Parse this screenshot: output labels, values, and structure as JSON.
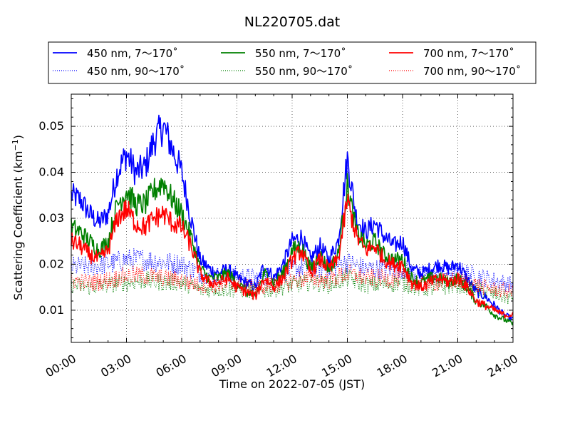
{
  "chart_data": {
    "type": "line",
    "title": "NL220705.dat",
    "xlabel": "Time on 2022-07-05 (JST)",
    "ylabel_main": "Scattering Coefficient (km",
    "ylabel_sup": "−1",
    "ylabel_end": ")",
    "xlim": [
      0,
      24
    ],
    "ylim": [
      0.003,
      0.057
    ],
    "xticks": [
      {
        "value": 0,
        "label": "00:00"
      },
      {
        "value": 3,
        "label": "03:00"
      },
      {
        "value": 6,
        "label": "06:00"
      },
      {
        "value": 9,
        "label": "09:00"
      },
      {
        "value": 12,
        "label": "12:00"
      },
      {
        "value": 15,
        "label": "15:00"
      },
      {
        "value": 18,
        "label": "18:00"
      },
      {
        "value": 21,
        "label": "21:00"
      },
      {
        "value": 24,
        "label": "24:00"
      }
    ],
    "yticks": [
      {
        "value": 0.01,
        "label": "0.01"
      },
      {
        "value": 0.02,
        "label": "0.02"
      },
      {
        "value": 0.03,
        "label": "0.03"
      },
      {
        "value": 0.04,
        "label": "0.04"
      },
      {
        "value": 0.05,
        "label": "0.05"
      }
    ],
    "grid": true,
    "legend_position": "top",
    "series": [
      {
        "name": "450 nm, 7～170˚",
        "color": "#0000ff",
        "style": "solid",
        "x": [
          0,
          0.5,
          1,
          1.5,
          2,
          2.5,
          3,
          3.5,
          4,
          4.5,
          5,
          5.5,
          6,
          6.5,
          7,
          7.5,
          8,
          8.5,
          9,
          9.5,
          10,
          10.5,
          11,
          11.5,
          12,
          12.5,
          13,
          13.5,
          14,
          14.5,
          15,
          15.5,
          16,
          16.5,
          17,
          17.5,
          18,
          18.5,
          19,
          19.5,
          20,
          20.5,
          21,
          21.5,
          22,
          22.5,
          23,
          23.5,
          24
        ],
        "y": [
          0.035,
          0.034,
          0.031,
          0.029,
          0.031,
          0.04,
          0.044,
          0.04,
          0.041,
          0.047,
          0.05,
          0.045,
          0.04,
          0.03,
          0.021,
          0.019,
          0.018,
          0.019,
          0.017,
          0.016,
          0.015,
          0.02,
          0.017,
          0.02,
          0.025,
          0.026,
          0.021,
          0.024,
          0.021,
          0.025,
          0.043,
          0.03,
          0.027,
          0.029,
          0.026,
          0.024,
          0.025,
          0.019,
          0.018,
          0.019,
          0.02,
          0.019,
          0.02,
          0.017,
          0.014,
          0.013,
          0.011,
          0.009,
          0.008
        ]
      },
      {
        "name": "450 nm, 90～170˚",
        "color": "#0000ff",
        "style": "dotted",
        "x": [
          0,
          1,
          2,
          3,
          4,
          5,
          6,
          7,
          8,
          9,
          10,
          11,
          12,
          13,
          14,
          15,
          16,
          17,
          18,
          19,
          20,
          21,
          22,
          23,
          24
        ],
        "y": [
          0.0195,
          0.0195,
          0.02,
          0.021,
          0.021,
          0.0205,
          0.02,
          0.018,
          0.0175,
          0.0175,
          0.017,
          0.0175,
          0.019,
          0.0195,
          0.019,
          0.0205,
          0.019,
          0.019,
          0.019,
          0.0175,
          0.018,
          0.0185,
          0.0175,
          0.0165,
          0.0155
        ]
      },
      {
        "name": "550 nm, 7～170˚",
        "color": "#008000",
        "style": "solid",
        "x": [
          0,
          0.5,
          1,
          1.5,
          2,
          2.5,
          3,
          3.5,
          4,
          4.5,
          5,
          5.5,
          6,
          6.5,
          7,
          7.5,
          8,
          8.5,
          9,
          9.5,
          10,
          10.5,
          11,
          11.5,
          12,
          12.5,
          13,
          13.5,
          14,
          14.5,
          15,
          15.5,
          16,
          16.5,
          17,
          17.5,
          18,
          18.5,
          19,
          19.5,
          20,
          20.5,
          21,
          21.5,
          22,
          22.5,
          23,
          23.5,
          24
        ],
        "y": [
          0.028,
          0.027,
          0.025,
          0.023,
          0.025,
          0.033,
          0.036,
          0.033,
          0.033,
          0.036,
          0.038,
          0.034,
          0.031,
          0.026,
          0.019,
          0.017,
          0.017,
          0.018,
          0.016,
          0.014,
          0.013,
          0.018,
          0.016,
          0.018,
          0.023,
          0.024,
          0.019,
          0.022,
          0.019,
          0.022,
          0.037,
          0.027,
          0.024,
          0.025,
          0.022,
          0.021,
          0.021,
          0.017,
          0.016,
          0.017,
          0.017,
          0.016,
          0.017,
          0.015,
          0.012,
          0.011,
          0.009,
          0.008,
          0.007
        ]
      },
      {
        "name": "550 nm, 90～170˚",
        "color": "#008000",
        "style": "dotted",
        "x": [
          0,
          1,
          2,
          3,
          4,
          5,
          6,
          7,
          8,
          9,
          10,
          11,
          12,
          13,
          14,
          15,
          16,
          17,
          18,
          19,
          20,
          21,
          22,
          23,
          24
        ],
        "y": [
          0.0155,
          0.015,
          0.0155,
          0.016,
          0.0165,
          0.016,
          0.016,
          0.0145,
          0.0145,
          0.0145,
          0.014,
          0.0145,
          0.0155,
          0.016,
          0.0155,
          0.017,
          0.0155,
          0.0155,
          0.016,
          0.0145,
          0.015,
          0.0155,
          0.0145,
          0.0135,
          0.0125
        ]
      },
      {
        "name": "700 nm, 7～170˚",
        "color": "#ff0000",
        "style": "solid",
        "x": [
          0,
          0.5,
          1,
          1.5,
          2,
          2.5,
          3,
          3.5,
          4,
          4.5,
          5,
          5.5,
          6,
          6.5,
          7,
          7.5,
          8,
          8.5,
          9,
          9.5,
          10,
          10.5,
          11,
          11.5,
          12,
          12.5,
          13,
          13.5,
          14,
          14.5,
          15,
          15.5,
          16,
          16.5,
          17,
          17.5,
          18,
          18.5,
          19,
          19.5,
          20,
          20.5,
          21,
          21.5,
          22,
          22.5,
          23,
          23.5,
          24
        ],
        "y": [
          0.025,
          0.024,
          0.022,
          0.021,
          0.023,
          0.03,
          0.032,
          0.029,
          0.028,
          0.03,
          0.031,
          0.029,
          0.028,
          0.024,
          0.018,
          0.016,
          0.016,
          0.017,
          0.015,
          0.014,
          0.013,
          0.017,
          0.015,
          0.017,
          0.021,
          0.023,
          0.018,
          0.021,
          0.019,
          0.021,
          0.034,
          0.026,
          0.023,
          0.024,
          0.021,
          0.02,
          0.02,
          0.016,
          0.015,
          0.016,
          0.017,
          0.016,
          0.017,
          0.015,
          0.012,
          0.011,
          0.01,
          0.009,
          0.009
        ]
      },
      {
        "name": "700 nm, 90～170˚",
        "color": "#ff0000",
        "style": "dotted",
        "x": [
          0,
          1,
          2,
          3,
          4,
          5,
          6,
          7,
          8,
          9,
          10,
          11,
          12,
          13,
          14,
          15,
          16,
          17,
          18,
          19,
          20,
          21,
          22,
          23,
          24
        ],
        "y": [
          0.0165,
          0.016,
          0.0165,
          0.0175,
          0.0175,
          0.017,
          0.0165,
          0.0155,
          0.0155,
          0.0155,
          0.015,
          0.0155,
          0.0165,
          0.017,
          0.0165,
          0.018,
          0.017,
          0.017,
          0.017,
          0.0155,
          0.016,
          0.0165,
          0.0155,
          0.0145,
          0.014
        ]
      }
    ]
  }
}
